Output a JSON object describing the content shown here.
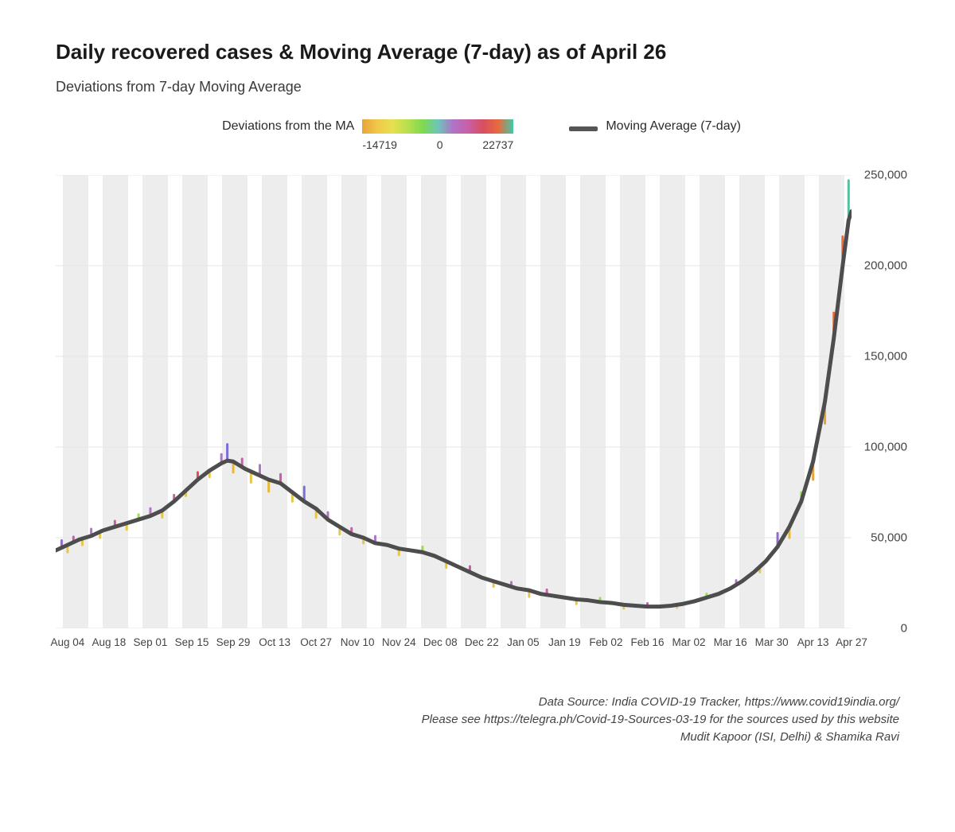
{
  "title": "Daily recovered cases & Moving Average (7-day) as of April 26",
  "subtitle": "Deviations from 7-day Moving Average",
  "legend": {
    "colorbar_label": "Deviations from the MA",
    "colorbar_min": "-14719",
    "colorbar_mid": "0",
    "colorbar_max": "22737",
    "line_label": "Moving Average (7-day)",
    "line_color": "#555555",
    "colorbar_stops": [
      "#e8a33a",
      "#f0c84a",
      "#e6e04e",
      "#b8e04e",
      "#7fd94e",
      "#6cc7b8",
      "#b074c8",
      "#c85fa8",
      "#d84f60",
      "#e86a3e",
      "#3fc9a5"
    ]
  },
  "chart": {
    "type": "line-with-deviation-bars",
    "background_color": "#ffffff",
    "panel_stripe_color": "#ededed",
    "gridline_color": "#e6e6e6",
    "line_color": "#4d4d4d",
    "line_width": 5,
    "xlim": [
      0,
      269
    ],
    "ylim": [
      0,
      250000
    ],
    "y_ticks": [
      {
        "v": 0,
        "label": "0"
      },
      {
        "v": 50000,
        "label": "50,000"
      },
      {
        "v": 100000,
        "label": "100,000"
      },
      {
        "v": 150000,
        "label": "150,000"
      },
      {
        "v": 200000,
        "label": "200,000"
      },
      {
        "v": 250000,
        "label": "250,000"
      }
    ],
    "x_ticks": [
      {
        "v": 4,
        "label": "Aug 04"
      },
      {
        "v": 18,
        "label": "Aug 18"
      },
      {
        "v": 32,
        "label": "Sep 01"
      },
      {
        "v": 46,
        "label": "Sep 15"
      },
      {
        "v": 60,
        "label": "Sep 29"
      },
      {
        "v": 74,
        "label": "Oct 13"
      },
      {
        "v": 88,
        "label": "Oct 27"
      },
      {
        "v": 102,
        "label": "Nov 10"
      },
      {
        "v": 116,
        "label": "Nov 24"
      },
      {
        "v": 130,
        "label": "Dec 08"
      },
      {
        "v": 144,
        "label": "Dec 22"
      },
      {
        "v": 158,
        "label": "Jan 05"
      },
      {
        "v": 172,
        "label": "Jan 19"
      },
      {
        "v": 186,
        "label": "Feb 02"
      },
      {
        "v": 200,
        "label": "Feb 16"
      },
      {
        "v": 214,
        "label": "Mar 02"
      },
      {
        "v": 228,
        "label": "Mar 16"
      },
      {
        "v": 242,
        "label": "Mar 30"
      },
      {
        "v": 256,
        "label": "Apr 13"
      },
      {
        "v": 269,
        "label": "Apr 27"
      }
    ],
    "ma_series": [
      {
        "x": 0,
        "y": 43000
      },
      {
        "x": 4,
        "y": 46000
      },
      {
        "x": 8,
        "y": 49000
      },
      {
        "x": 12,
        "y": 51000
      },
      {
        "x": 16,
        "y": 54000
      },
      {
        "x": 20,
        "y": 56000
      },
      {
        "x": 24,
        "y": 58000
      },
      {
        "x": 28,
        "y": 60000
      },
      {
        "x": 32,
        "y": 62000
      },
      {
        "x": 36,
        "y": 65000
      },
      {
        "x": 40,
        "y": 70000
      },
      {
        "x": 44,
        "y": 76000
      },
      {
        "x": 48,
        "y": 82000
      },
      {
        "x": 52,
        "y": 87000
      },
      {
        "x": 56,
        "y": 91000
      },
      {
        "x": 58,
        "y": 92500
      },
      {
        "x": 60,
        "y": 92000
      },
      {
        "x": 64,
        "y": 88000
      },
      {
        "x": 68,
        "y": 85000
      },
      {
        "x": 72,
        "y": 82000
      },
      {
        "x": 76,
        "y": 80000
      },
      {
        "x": 80,
        "y": 75000
      },
      {
        "x": 84,
        "y": 70000
      },
      {
        "x": 88,
        "y": 66000
      },
      {
        "x": 92,
        "y": 60000
      },
      {
        "x": 96,
        "y": 56000
      },
      {
        "x": 100,
        "y": 52000
      },
      {
        "x": 104,
        "y": 50000
      },
      {
        "x": 108,
        "y": 47000
      },
      {
        "x": 112,
        "y": 46000
      },
      {
        "x": 116,
        "y": 44000
      },
      {
        "x": 120,
        "y": 43000
      },
      {
        "x": 124,
        "y": 42000
      },
      {
        "x": 128,
        "y": 40000
      },
      {
        "x": 132,
        "y": 37000
      },
      {
        "x": 136,
        "y": 34000
      },
      {
        "x": 140,
        "y": 31000
      },
      {
        "x": 144,
        "y": 28000
      },
      {
        "x": 148,
        "y": 26000
      },
      {
        "x": 152,
        "y": 24000
      },
      {
        "x": 156,
        "y": 22000
      },
      {
        "x": 160,
        "y": 21000
      },
      {
        "x": 164,
        "y": 19000
      },
      {
        "x": 168,
        "y": 18000
      },
      {
        "x": 172,
        "y": 17000
      },
      {
        "x": 176,
        "y": 16000
      },
      {
        "x": 180,
        "y": 15500
      },
      {
        "x": 184,
        "y": 14500
      },
      {
        "x": 188,
        "y": 14000
      },
      {
        "x": 192,
        "y": 13000
      },
      {
        "x": 196,
        "y": 12500
      },
      {
        "x": 200,
        "y": 12000
      },
      {
        "x": 204,
        "y": 12000
      },
      {
        "x": 208,
        "y": 12500
      },
      {
        "x": 212,
        "y": 13500
      },
      {
        "x": 216,
        "y": 15000
      },
      {
        "x": 220,
        "y": 17000
      },
      {
        "x": 224,
        "y": 19000
      },
      {
        "x": 228,
        "y": 22000
      },
      {
        "x": 232,
        "y": 26000
      },
      {
        "x": 236,
        "y": 31000
      },
      {
        "x": 240,
        "y": 37000
      },
      {
        "x": 244,
        "y": 45000
      },
      {
        "x": 248,
        "y": 56000
      },
      {
        "x": 252,
        "y": 70000
      },
      {
        "x": 256,
        "y": 92000
      },
      {
        "x": 260,
        "y": 125000
      },
      {
        "x": 263,
        "y": 160000
      },
      {
        "x": 266,
        "y": 200000
      },
      {
        "x": 268,
        "y": 225000
      },
      {
        "x": 269,
        "y": 230000
      }
    ],
    "deviation_bars": [
      {
        "x": 2,
        "ma": 44000,
        "dev": 4500,
        "c": "#8f6fc4"
      },
      {
        "x": 4,
        "ma": 46000,
        "dev": -4000,
        "c": "#e6c74a"
      },
      {
        "x": 6,
        "ma": 47500,
        "dev": 3000,
        "c": "#c85fa8"
      },
      {
        "x": 9,
        "ma": 49500,
        "dev": -3500,
        "c": "#e6c74a"
      },
      {
        "x": 12,
        "ma": 51000,
        "dev": 3800,
        "c": "#b074c8"
      },
      {
        "x": 15,
        "ma": 53000,
        "dev": -3000,
        "c": "#e6c74a"
      },
      {
        "x": 20,
        "ma": 56000,
        "dev": 3200,
        "c": "#c85fa8"
      },
      {
        "x": 24,
        "ma": 58000,
        "dev": -3500,
        "c": "#e6c74a"
      },
      {
        "x": 28,
        "ma": 60000,
        "dev": 2800,
        "c": "#9edc4e"
      },
      {
        "x": 32,
        "ma": 62000,
        "dev": 4200,
        "c": "#b074c8"
      },
      {
        "x": 36,
        "ma": 65000,
        "dev": -3800,
        "c": "#e6c74a"
      },
      {
        "x": 40,
        "ma": 70000,
        "dev": 3500,
        "c": "#c85fa8"
      },
      {
        "x": 44,
        "ma": 76000,
        "dev": -3000,
        "c": "#e6c74a"
      },
      {
        "x": 48,
        "ma": 82000,
        "dev": 4000,
        "c": "#d84f60"
      },
      {
        "x": 52,
        "ma": 87000,
        "dev": -3500,
        "c": "#e6c74a"
      },
      {
        "x": 56,
        "ma": 91000,
        "dev": 5000,
        "c": "#b074c8"
      },
      {
        "x": 58,
        "ma": 92500,
        "dev": 9000,
        "c": "#7a6fd4"
      },
      {
        "x": 60,
        "ma": 92000,
        "dev": -6000,
        "c": "#e8b83a"
      },
      {
        "x": 63,
        "ma": 89000,
        "dev": 4500,
        "c": "#c85fa8"
      },
      {
        "x": 66,
        "ma": 86000,
        "dev": -5500,
        "c": "#e6c74a"
      },
      {
        "x": 69,
        "ma": 84000,
        "dev": 6000,
        "c": "#b074c8"
      },
      {
        "x": 72,
        "ma": 82000,
        "dev": -6500,
        "c": "#e8b83a"
      },
      {
        "x": 76,
        "ma": 80000,
        "dev": 5000,
        "c": "#c85fa8"
      },
      {
        "x": 80,
        "ma": 75000,
        "dev": -5000,
        "c": "#e6c74a"
      },
      {
        "x": 84,
        "ma": 70000,
        "dev": 8000,
        "c": "#7a6fd4"
      },
      {
        "x": 88,
        "ma": 66000,
        "dev": -5000,
        "c": "#e6c74a"
      },
      {
        "x": 92,
        "ma": 60000,
        "dev": 4000,
        "c": "#b074c8"
      },
      {
        "x": 96,
        "ma": 56000,
        "dev": -4200,
        "c": "#e6c74a"
      },
      {
        "x": 100,
        "ma": 52000,
        "dev": 3200,
        "c": "#c85fa8"
      },
      {
        "x": 104,
        "ma": 50000,
        "dev": -3000,
        "c": "#e6c74a"
      },
      {
        "x": 108,
        "ma": 47000,
        "dev": 3800,
        "c": "#b074c8"
      },
      {
        "x": 116,
        "ma": 44000,
        "dev": -3500,
        "c": "#e6c74a"
      },
      {
        "x": 124,
        "ma": 42000,
        "dev": 3000,
        "c": "#9edc4e"
      },
      {
        "x": 132,
        "ma": 37000,
        "dev": -3500,
        "c": "#e6c74a"
      },
      {
        "x": 140,
        "ma": 31000,
        "dev": 3200,
        "c": "#c85fa8"
      },
      {
        "x": 148,
        "ma": 26000,
        "dev": -3000,
        "c": "#e6c74a"
      },
      {
        "x": 154,
        "ma": 23000,
        "dev": 2500,
        "c": "#b074c8"
      },
      {
        "x": 160,
        "ma": 21000,
        "dev": -3500,
        "c": "#e6c74a"
      },
      {
        "x": 166,
        "ma": 18500,
        "dev": 2800,
        "c": "#c85fa8"
      },
      {
        "x": 176,
        "ma": 16000,
        "dev": -2500,
        "c": "#e6c74a"
      },
      {
        "x": 184,
        "ma": 14500,
        "dev": 2200,
        "c": "#9edc4e"
      },
      {
        "x": 192,
        "ma": 13000,
        "dev": -2000,
        "c": "#e6c74a"
      },
      {
        "x": 200,
        "ma": 12000,
        "dev": 1800,
        "c": "#c85fa8"
      },
      {
        "x": 210,
        "ma": 13000,
        "dev": -1600,
        "c": "#e6c74a"
      },
      {
        "x": 220,
        "ma": 17000,
        "dev": 2000,
        "c": "#9edc4e"
      },
      {
        "x": 230,
        "ma": 24000,
        "dev": 2500,
        "c": "#b074c8"
      },
      {
        "x": 238,
        "ma": 34000,
        "dev": -3000,
        "c": "#e6c74a"
      },
      {
        "x": 244,
        "ma": 45000,
        "dev": 7500,
        "c": "#8f6fc4"
      },
      {
        "x": 248,
        "ma": 56000,
        "dev": -6000,
        "c": "#e8b83a"
      },
      {
        "x": 252,
        "ma": 70000,
        "dev": 5000,
        "c": "#9edc4e"
      },
      {
        "x": 256,
        "ma": 92000,
        "dev": -10000,
        "c": "#e8a33a"
      },
      {
        "x": 260,
        "ma": 125000,
        "dev": -12000,
        "c": "#e8a33a"
      },
      {
        "x": 263,
        "ma": 160000,
        "dev": 14000,
        "c": "#e86a3e"
      },
      {
        "x": 266,
        "ma": 200000,
        "dev": 16000,
        "c": "#e86a3e"
      },
      {
        "x": 268,
        "ma": 225000,
        "dev": 22000,
        "c": "#3fc9a5"
      }
    ]
  },
  "credits": {
    "line1": "Data Source: India COVID-19 Tracker, https://www.covid19india.org/",
    "line2": "Please see https://telegra.ph/Covid-19-Sources-03-19 for the sources used by this website",
    "line3": "Mudit Kapoor (ISI, Delhi) & Shamika Ravi"
  }
}
